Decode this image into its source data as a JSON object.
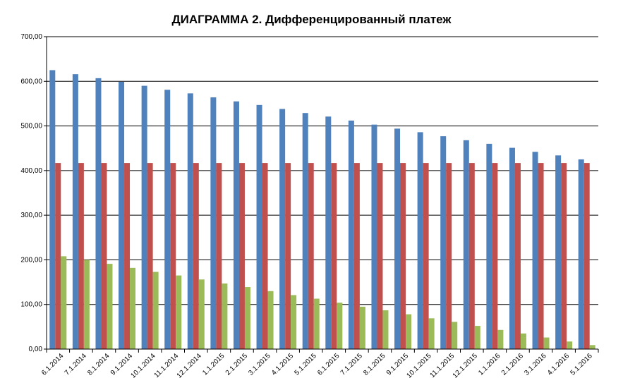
{
  "chart_data": {
    "type": "bar",
    "title": "ДИАГРАММА 2. Дифференцированный платеж",
    "xlabel": "",
    "ylabel": "",
    "ylim": [
      0,
      700
    ],
    "yticks": [
      "0,00",
      "100,00",
      "200,00",
      "300,00",
      "400,00",
      "500,00",
      "600,00",
      "700,00"
    ],
    "grid": true,
    "categories": [
      "6.1.2014",
      "7.1.2014",
      "8.1.2014",
      "9.1.2014",
      "10.1.2014",
      "11.1.2014",
      "12.1.2014",
      "1.1.2015",
      "2.1.2015",
      "3.1.2015",
      "4.1.2015",
      "5.1.2015",
      "6.1.2015",
      "7.1.2015",
      "8.1.2015",
      "9.1.2015",
      "10.1.2015",
      "11.1.2015",
      "12.1.2015",
      "1.1.2016",
      "2.1.2016",
      "3.1.2016",
      "4.1.2016",
      "5.1.2016"
    ],
    "series": [
      {
        "color": "#4f81bd",
        "values": [
          625,
          616,
          607,
          599,
          590,
          581,
          573,
          564,
          555,
          547,
          538,
          529,
          521,
          512,
          503,
          494,
          486,
          477,
          468,
          460,
          451,
          442,
          434,
          425
        ]
      },
      {
        "color": "#c0504d",
        "values": [
          417,
          417,
          417,
          417,
          417,
          417,
          417,
          417,
          417,
          417,
          417,
          417,
          417,
          417,
          417,
          417,
          417,
          417,
          417,
          417,
          417,
          417,
          417,
          417
        ]
      },
      {
        "color": "#9bbb59",
        "values": [
          208,
          200,
          191,
          182,
          173,
          165,
          156,
          147,
          139,
          130,
          121,
          113,
          104,
          95,
          87,
          78,
          69,
          61,
          52,
          43,
          35,
          26,
          17,
          9
        ]
      }
    ]
  }
}
